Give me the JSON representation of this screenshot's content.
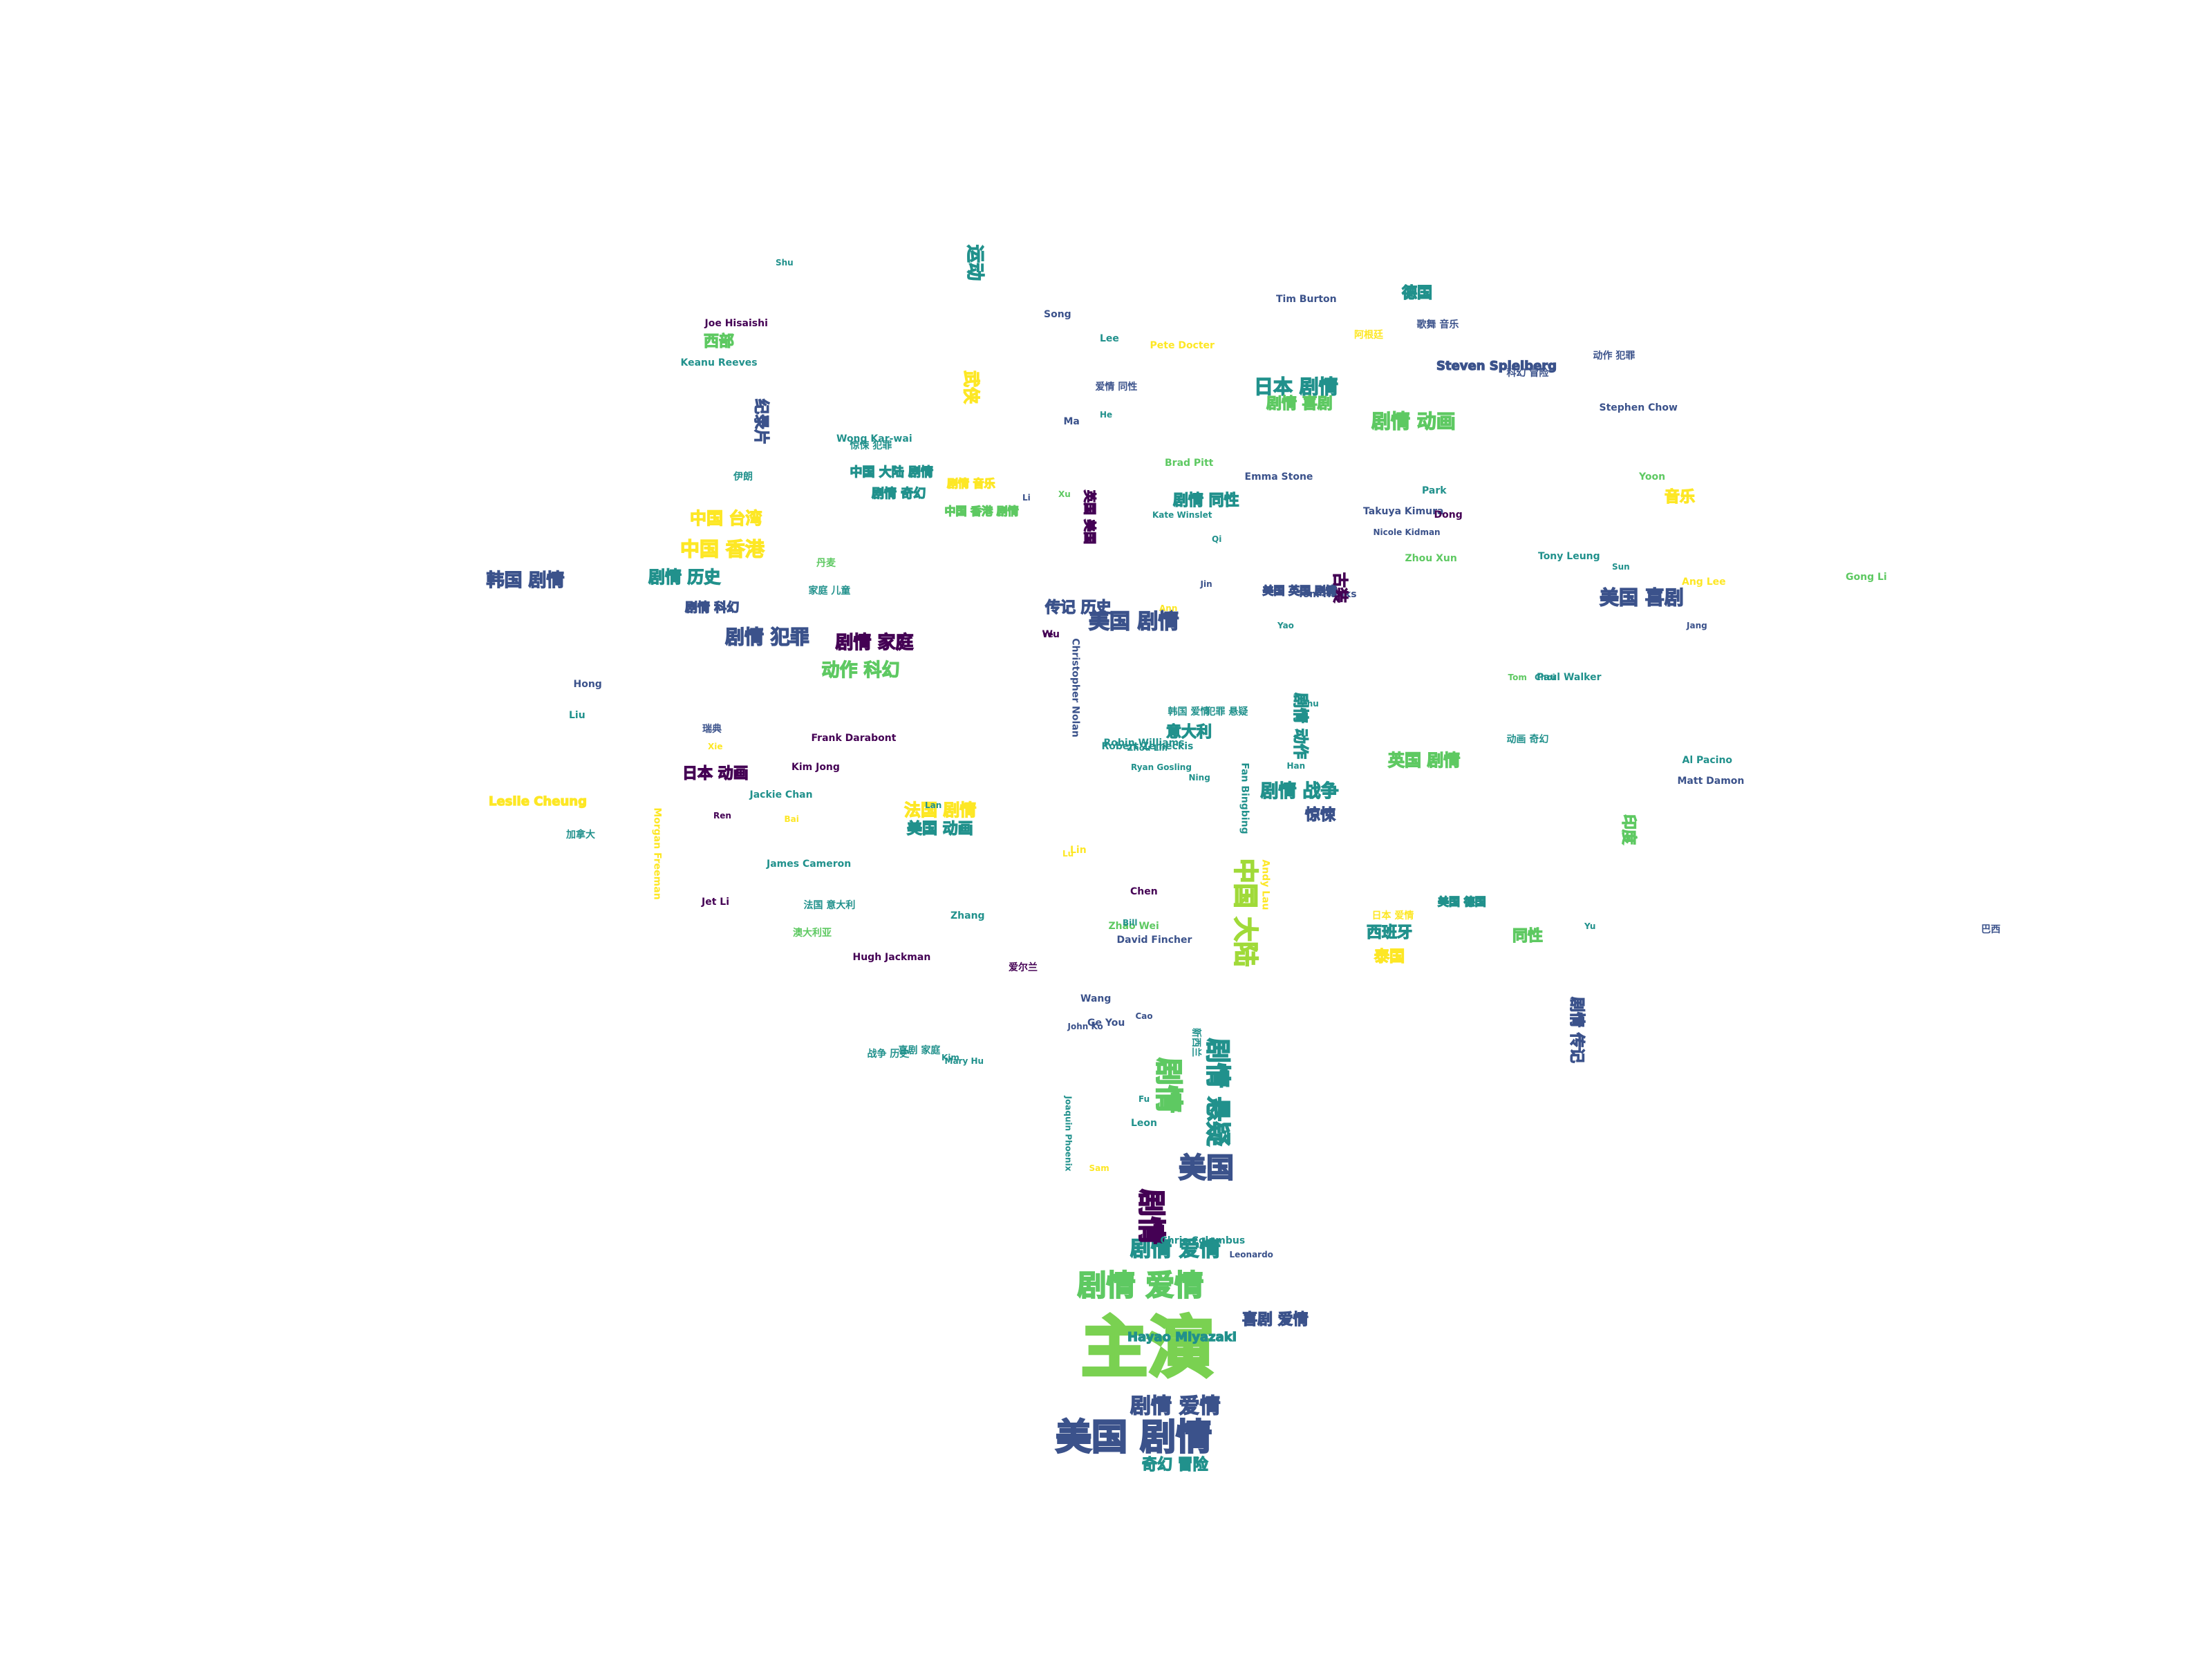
{
  "palette": {
    "c1": "#440154",
    "c2": "#3b528b",
    "c3": "#21918c",
    "c4": "#5ec962",
    "c5": "#fde725"
  },
  "words": [
    {
      "text": "主演",
      "color": "#7ad151"
    },
    {
      "text": "美国 剧情",
      "color": "#3b528b"
    },
    {
      "text": "剧情 爱情",
      "color": "#5ec962"
    },
    {
      "text": "剧情 爱情",
      "color": "#3b528b"
    },
    {
      "text": "剧情 爱情",
      "color": "#21918c"
    },
    {
      "text": "剧情",
      "color": "#440154"
    },
    {
      "text": "美国",
      "color": "#3b528b"
    },
    {
      "text": "剧情",
      "color": "#5ec962"
    },
    {
      "text": "剧情 悬疑",
      "color": "#21918c"
    },
    {
      "text": "中国 大陆",
      "color": "#a0da39"
    },
    {
      "text": "美国 剧情",
      "color": "#3b528b"
    },
    {
      "text": "剧情 犯罪",
      "color": "#3b528b"
    },
    {
      "text": "中国 香港",
      "color": "#fde725"
    },
    {
      "text": "日本 剧情",
      "color": "#21918c"
    },
    {
      "text": "剧情 动画",
      "color": "#5ec962"
    },
    {
      "text": "美国 喜剧",
      "color": "#3b528b"
    },
    {
      "text": "Hayao Miyazaki",
      "color": "#21918c"
    },
    {
      "text": "Steven Spielberg",
      "color": "#3b528b"
    },
    {
      "text": "Leslie Cheung",
      "color": "#fde725"
    },
    {
      "text": "Chris Columbus",
      "color": "#21918c"
    },
    {
      "text": "Christopher Nolan",
      "color": "#3b528b"
    },
    {
      "text": "Frank Darabont",
      "color": "#440154"
    },
    {
      "text": "Robin Williams",
      "color": "#21918c"
    },
    {
      "text": "Fan Bingbing",
      "color": "#21918c"
    },
    {
      "text": "Andy Lau",
      "color": "#fde725"
    },
    {
      "text": "Tom Hanks",
      "color": "#3b528b"
    },
    {
      "text": "Jet Li",
      "color": "#440154"
    },
    {
      "text": "Stephen Chow",
      "color": "#3b528b"
    },
    {
      "text": "Tony Leung",
      "color": "#21918c"
    },
    {
      "text": "Brad Pitt",
      "color": "#5ec962"
    },
    {
      "text": "Leon",
      "color": "#21918c"
    },
    {
      "text": "Pete Docter",
      "color": "#fde725"
    },
    {
      "text": "Gong Li",
      "color": "#5ec962"
    },
    {
      "text": "Kim Jong",
      "color": "#440154"
    },
    {
      "text": "Jackie Chan",
      "color": "#21918c"
    },
    {
      "text": "Takuya Kimura",
      "color": "#3b528b"
    },
    {
      "text": "Paul Walker",
      "color": "#21918c"
    },
    {
      "text": "Emma Stone",
      "color": "#3b528b"
    },
    {
      "text": "David Fincher",
      "color": "#3b528b"
    },
    {
      "text": "Morgan Freeman",
      "color": "#fde725"
    },
    {
      "text": "James Cameron",
      "color": "#21918c"
    },
    {
      "text": "Hugh Jackman",
      "color": "#440154"
    },
    {
      "text": "Robert Zemeckis",
      "color": "#21918c"
    },
    {
      "text": "Song",
      "color": "#3b528b"
    },
    {
      "text": "Lee",
      "color": "#21918c"
    },
    {
      "text": "Chen",
      "color": "#440154"
    },
    {
      "text": "Wang",
      "color": "#3b528b"
    },
    {
      "text": "Zhang",
      "color": "#21918c"
    },
    {
      "text": "剧情 家庭",
      "color": "#440154"
    },
    {
      "text": "韩国 剧情",
      "color": "#3b528b"
    },
    {
      "text": "剧情 战争",
      "color": "#21918c"
    },
    {
      "text": "法国 剧情",
      "color": "#fde725"
    },
    {
      "text": "英国 剧情",
      "color": "#5ec962"
    },
    {
      "text": "中国 台湾",
      "color": "#fde725"
    },
    {
      "text": "意大利",
      "color": "#21918c"
    },
    {
      "text": "动作 科幻",
      "color": "#5ec962"
    },
    {
      "text": "喜剧 爱情",
      "color": "#3b528b"
    },
    {
      "text": "奇幻 冒险",
      "color": "#21918c"
    },
    {
      "text": "传记 历史",
      "color": "#3b528b"
    },
    {
      "text": "音乐",
      "color": "#fde725"
    },
    {
      "text": "同性",
      "color": "#5ec962"
    },
    {
      "text": "德国",
      "color": "#21918c"
    },
    {
      "text": "惊悚",
      "color": "#3b528b"
    },
    {
      "text": "西部",
      "color": "#5ec962"
    },
    {
      "text": "运动",
      "color": "#21918c"
    },
    {
      "text": "武侠",
      "color": "#fde725"
    },
    {
      "text": "古装",
      "color": "#440154"
    },
    {
      "text": "纪录片",
      "color": "#3b528b"
    },
    {
      "text": "印度",
      "color": "#5ec962"
    },
    {
      "text": "西班牙",
      "color": "#21918c"
    },
    {
      "text": "泰国",
      "color": "#fde725"
    },
    {
      "text": "巴西",
      "color": "#3b528b"
    },
    {
      "text": "加拿大",
      "color": "#21918c"
    },
    {
      "text": "澳大利亚",
      "color": "#5ec962"
    },
    {
      "text": "瑞典",
      "color": "#3b528b"
    },
    {
      "text": "伊朗",
      "color": "#21918c"
    },
    {
      "text": "丹麦",
      "color": "#5ec962"
    },
    {
      "text": "爱尔兰",
      "color": "#440154"
    },
    {
      "text": "新西兰",
      "color": "#21918c"
    },
    {
      "text": "阿根廷",
      "color": "#fde725"
    },
    {
      "text": "Tim Burton",
      "color": "#3b528b"
    },
    {
      "text": "Ang Lee",
      "color": "#fde725"
    },
    {
      "text": "Wong Kar-wai",
      "color": "#21918c"
    },
    {
      "text": "Zhou Xun",
      "color": "#5ec962"
    },
    {
      "text": "Joe Hisaishi",
      "color": "#440154"
    },
    {
      "text": "Keanu Reeves",
      "color": "#21918c"
    },
    {
      "text": "Matt Damon",
      "color": "#3b528b"
    },
    {
      "text": "Al Pacino",
      "color": "#21918c"
    },
    {
      "text": "Zhao Wei",
      "color": "#5ec962"
    },
    {
      "text": "Ge You",
      "color": "#3b528b"
    },
    {
      "text": "Dong",
      "color": "#440154"
    },
    {
      "text": "Park",
      "color": "#21918c"
    },
    {
      "text": "Yoon",
      "color": "#5ec962"
    },
    {
      "text": "Hong",
      "color": "#3b528b"
    },
    {
      "text": "Lin",
      "color": "#fde725"
    },
    {
      "text": "Liu",
      "color": "#21918c"
    },
    {
      "text": "Wu",
      "color": "#440154"
    },
    {
      "text": "Ma",
      "color": "#3b528b"
    },
    {
      "text": "美国 动画",
      "color": "#21918c"
    },
    {
      "text": "日本 动画",
      "color": "#440154"
    },
    {
      "text": "剧情 奇幻",
      "color": "#21918c"
    },
    {
      "text": "剧情 传记",
      "color": "#3b528b"
    },
    {
      "text": "剧情 动作",
      "color": "#21918c"
    },
    {
      "text": "剧情 喜剧",
      "color": "#5ec962"
    },
    {
      "text": "剧情 历史",
      "color": "#21918c"
    },
    {
      "text": "剧情 科幻",
      "color": "#3b528b"
    },
    {
      "text": "剧情 音乐",
      "color": "#fde725"
    },
    {
      "text": "剧情 同性",
      "color": "#21918c"
    },
    {
      "text": "中国 大陆 剧情",
      "color": "#21918c"
    },
    {
      "text": "英国 美国",
      "color": "#440154"
    },
    {
      "text": "法国 意大利",
      "color": "#21918c"
    },
    {
      "text": "美国 英国 剧情",
      "color": "#3b528b"
    },
    {
      "text": "美国 德国",
      "color": "#21918c"
    },
    {
      "text": "日本 爱情",
      "color": "#fde725"
    },
    {
      "text": "中国 香港 剧情",
      "color": "#5ec962"
    },
    {
      "text": "韩国 爱情",
      "color": "#21918c"
    },
    {
      "text": "喜剧 家庭",
      "color": "#21918c"
    },
    {
      "text": "爱情 同性",
      "color": "#3b528b"
    },
    {
      "text": "犯罪 悬疑",
      "color": "#21918c"
    },
    {
      "text": "动作 犯罪",
      "color": "#3b528b"
    },
    {
      "text": "科幻 冒险",
      "color": "#3b528b"
    },
    {
      "text": "动画 奇幻",
      "color": "#21918c"
    },
    {
      "text": "战争 历史",
      "color": "#21918c"
    },
    {
      "text": "惊悚 犯罪",
      "color": "#21918c"
    },
    {
      "text": "家庭 儿童",
      "color": "#21918c"
    },
    {
      "text": "歌舞 音乐",
      "color": "#3b528b"
    },
    {
      "text": "Kate Winslet",
      "color": "#21918c"
    },
    {
      "text": "Ryan Gosling",
      "color": "#21918c"
    },
    {
      "text": "Nicole Kidman",
      "color": "#3b528b"
    },
    {
      "text": "Joaquin Phoenix",
      "color": "#21918c"
    },
    {
      "text": "Leonardo",
      "color": "#3b528b"
    },
    {
      "text": "Kim",
      "color": "#21918c"
    },
    {
      "text": "Choi",
      "color": "#21918c"
    },
    {
      "text": "Jang",
      "color": "#3b528b"
    },
    {
      "text": "Tom",
      "color": "#5ec962"
    },
    {
      "text": "Bill",
      "color": "#21918c"
    },
    {
      "text": "Ann",
      "color": "#fde725"
    },
    {
      "text": "Li",
      "color": "#3b528b"
    },
    {
      "text": "Xu",
      "color": "#5ec962"
    },
    {
      "text": "He",
      "color": "#21918c"
    },
    {
      "text": "Mary Hu",
      "color": "#21918c"
    },
    {
      "text": "John Ko",
      "color": "#3b528b"
    },
    {
      "text": "Zhou Lin",
      "color": "#21918c"
    },
    {
      "text": "Sam",
      "color": "#fde725"
    },
    {
      "text": "Yu",
      "color": "#21918c"
    },
    {
      "text": "Sun",
      "color": "#21918c"
    },
    {
      "text": "Qi",
      "color": "#21918c"
    },
    {
      "text": "Lu",
      "color": "#fde725"
    },
    {
      "text": "Zhu",
      "color": "#21918c"
    },
    {
      "text": "Han",
      "color": "#21918c"
    },
    {
      "text": "Cao",
      "color": "#3b528b"
    },
    {
      "text": "Fu",
      "color": "#21918c"
    },
    {
      "text": "Xie",
      "color": "#fde725"
    },
    {
      "text": "Ye",
      "color": "#440154"
    },
    {
      "text": "Shu",
      "color": "#21918c"
    },
    {
      "text": "Jin",
      "color": "#3b528b"
    },
    {
      "text": "Yao",
      "color": "#21918c"
    },
    {
      "text": "Bai",
      "color": "#fde725"
    },
    {
      "text": "Ren",
      "color": "#440154"
    },
    {
      "text": "Lan",
      "color": "#21918c"
    },
    {
      "text": "Ning",
      "color": "#21918c"
    }
  ]
}
